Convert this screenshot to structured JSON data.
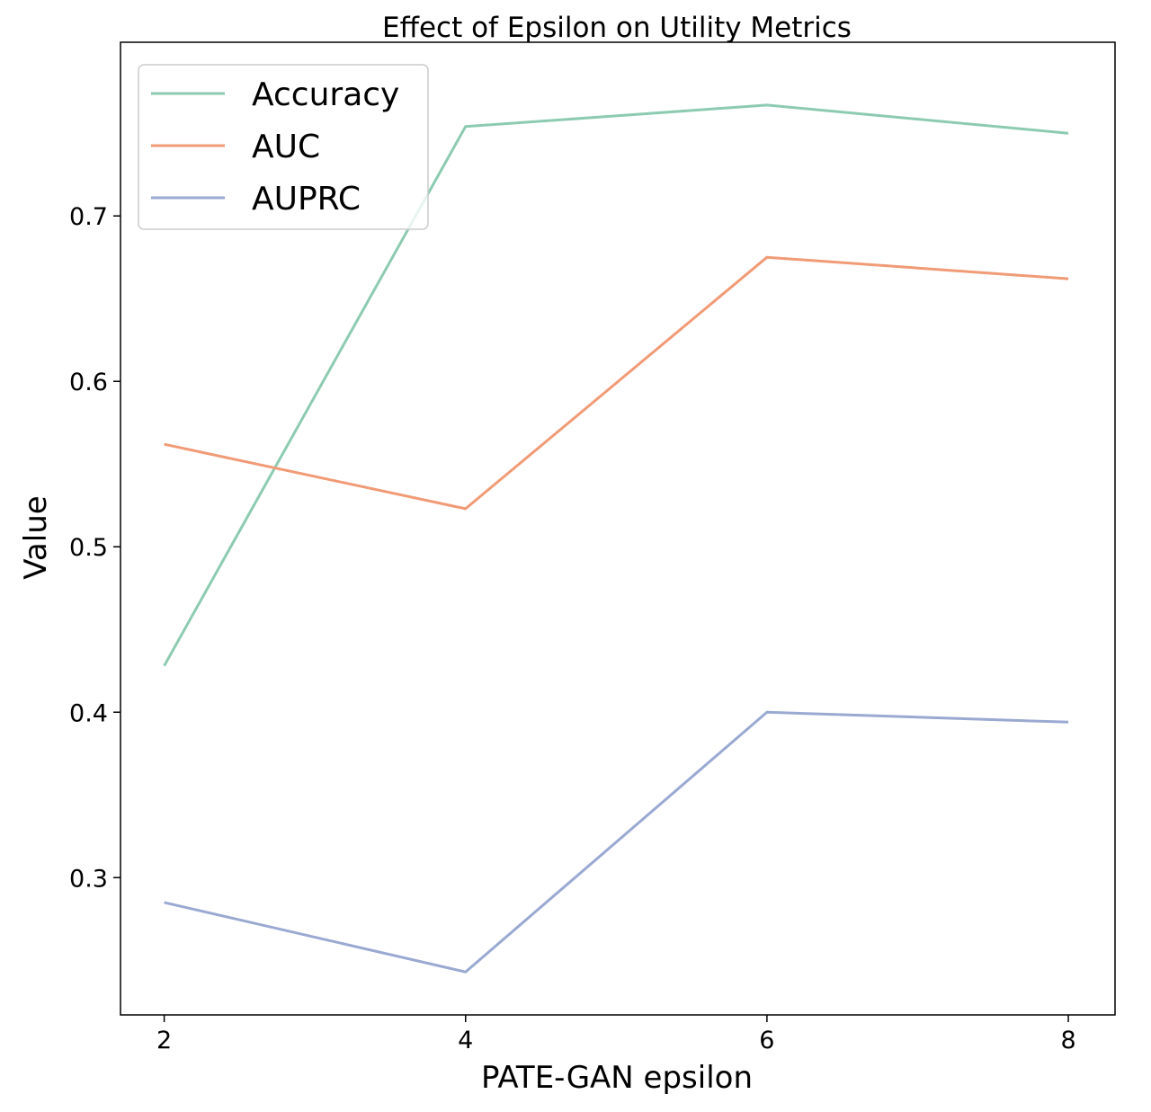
{
  "chart_data": {
    "type": "line",
    "title": "Effect of Epsilon on Utility Metrics",
    "xlabel": "PATE-GAN epsilon",
    "ylabel": "Value",
    "x": [
      2,
      4,
      6,
      8
    ],
    "xlim": [
      1.71,
      8.31
    ],
    "ylim": [
      0.217,
      0.805
    ],
    "xticks": [
      2,
      4,
      6,
      8
    ],
    "yticks": [
      0.3,
      0.4,
      0.5,
      0.6,
      0.7
    ],
    "xtick_labels": [
      "2",
      "4",
      "6",
      "8"
    ],
    "ytick_labels": [
      "0.3",
      "0.4",
      "0.5",
      "0.6",
      "0.7"
    ],
    "grid": false,
    "legend_position": "top-left",
    "series": [
      {
        "name": "Accuracy",
        "color": "#8dcbb1",
        "values": [
          0.428,
          0.754,
          0.767,
          0.75
        ]
      },
      {
        "name": "AUC",
        "color": "#f19a76",
        "values": [
          0.562,
          0.523,
          0.675,
          0.662
        ]
      },
      {
        "name": "AUPRC",
        "color": "#9aa9d2",
        "values": [
          0.285,
          0.243,
          0.4,
          0.394
        ]
      }
    ]
  }
}
